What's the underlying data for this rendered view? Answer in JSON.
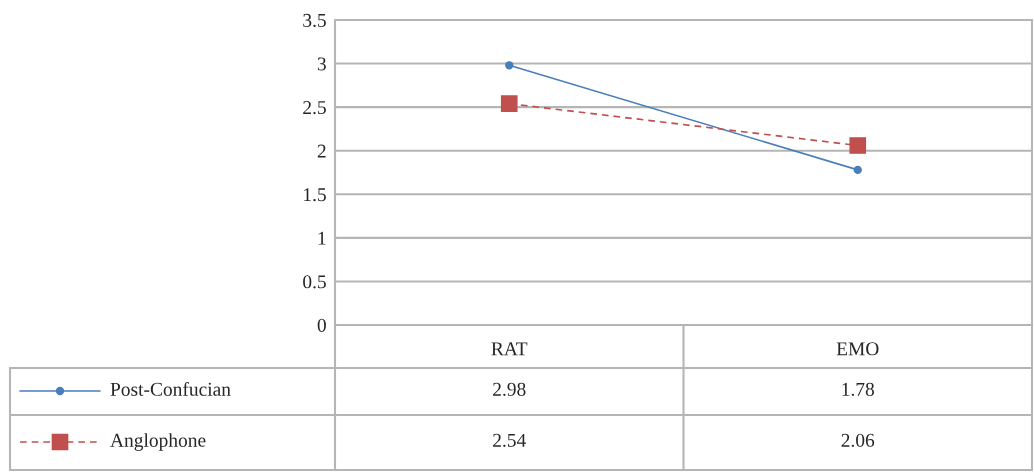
{
  "chart_data": {
    "type": "line",
    "categories": [
      "RAT",
      "EMO"
    ],
    "series": [
      {
        "name": "Post-Confucian",
        "color": "#4a7ebb",
        "values": [
          2.98,
          1.78
        ],
        "marker": "circle",
        "line_style": "solid"
      },
      {
        "name": "Anglophone",
        "color": "#c0504d",
        "values": [
          2.54,
          2.06
        ],
        "marker": "square",
        "line_style": "dashed"
      }
    ],
    "ylim": [
      0,
      3.5
    ],
    "yticks": [
      0,
      0.5,
      1,
      1.5,
      2,
      2.5,
      3,
      3.5
    ],
    "grid": "y",
    "data_labels": true,
    "legend": "bottom left"
  }
}
